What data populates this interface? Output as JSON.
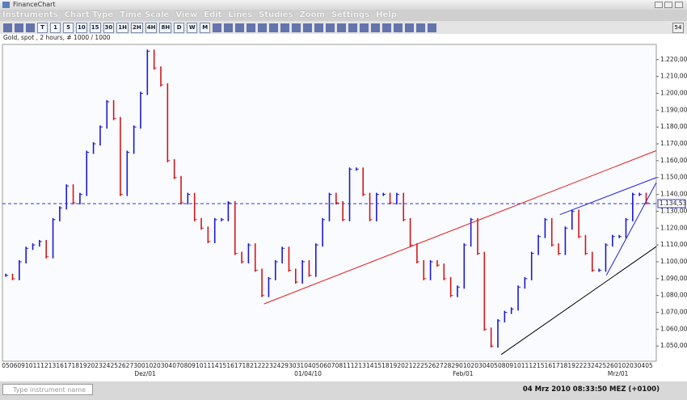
{
  "window_title": "FinanceChart",
  "menu": [
    "Instruments",
    "Chart Type",
    "Time Scale",
    "View",
    "Edit",
    "Lines",
    "Studies",
    "Zoom",
    "Settings",
    "Help"
  ],
  "toolbar_buttons": [
    "T",
    "1",
    "5",
    "10",
    "15",
    "30",
    "1H",
    "2H",
    "4H",
    "8H",
    "D",
    "W",
    "M"
  ],
  "badge": "54",
  "chart_data": {
    "type": "stock",
    "title": "Gold, spot , 2 hours, # 1000 / 1000",
    "up_color": "#1a1ad0",
    "down_color": "#d01818",
    "xlim": [
      -0.5,
      96.5
    ],
    "ylim": [
      1041,
      1229
    ],
    "values": [
      1092,
      1090,
      1100,
      1108,
      1110,
      1112,
      1103,
      1125,
      1132,
      1145,
      1135,
      1140,
      1165,
      1170,
      1180,
      1195,
      1185,
      1140,
      1165,
      1180,
      1200,
      1225,
      1215,
      1205,
      1160,
      1150,
      1135,
      1140,
      1125,
      1120,
      1112,
      1125,
      1125,
      1135,
      1105,
      1100,
      1110,
      1095,
      1080,
      1090,
      1100,
      1108,
      1095,
      1088,
      1100,
      1092,
      1110,
      1125,
      1140,
      1135,
      1125,
      1155,
      1155,
      1140,
      1125,
      1140,
      1140,
      1135,
      1140,
      1125,
      1110,
      1100,
      1090,
      1100,
      1098,
      1090,
      1080,
      1085,
      1110,
      1125,
      1105,
      1060,
      1050,
      1065,
      1070,
      1072,
      1085,
      1090,
      1105,
      1115,
      1125,
      1110,
      1105,
      1120,
      1130,
      1115,
      1105,
      1095,
      1095,
      1110,
      1115,
      1115,
      1125,
      1140,
      1140,
      1135
    ],
    "yticks": [
      {
        "value": 1050,
        "label": "1.050,00"
      },
      {
        "value": 1060,
        "label": "1.060,00"
      },
      {
        "value": 1070,
        "label": "1.070,00"
      },
      {
        "value": 1080,
        "label": "1.080,00"
      },
      {
        "value": 1090,
        "label": "1.090,00"
      },
      {
        "value": 1100,
        "label": "1.100,00"
      },
      {
        "value": 1110,
        "label": "1.110,00"
      },
      {
        "value": 1120,
        "label": "1.120,00"
      },
      {
        "value": 1130,
        "label": "1.130,00"
      },
      {
        "value": 1140,
        "label": "1.140,00"
      },
      {
        "value": 1150,
        "label": "1.150,00"
      },
      {
        "value": 1160,
        "label": "1.160,00"
      },
      {
        "value": 1170,
        "label": "1.170,00"
      },
      {
        "value": 1180,
        "label": "1.180,00"
      },
      {
        "value": 1190,
        "label": "1.190,00"
      },
      {
        "value": 1200,
        "label": "1.200,00"
      },
      {
        "value": 1210,
        "label": "1.210,00"
      },
      {
        "value": 1220,
        "label": "1.220,00"
      }
    ],
    "last_price": {
      "value": 1134.53,
      "label": "1.134,53"
    },
    "trend_lines": [
      {
        "color": "#e02020",
        "x": [
          38.3,
          96.5
        ],
        "y": [
          1075,
          1166
        ]
      },
      {
        "color": "#000000",
        "x": [
          73.5,
          96.5
        ],
        "y": [
          1045,
          1109
        ]
      },
      {
        "color": "#2020e0",
        "x": [
          82.2,
          96.5
        ],
        "y": [
          1128,
          1150
        ]
      },
      {
        "color": "#2020e0",
        "x": [
          89.1,
          96.5
        ],
        "y": [
          1092,
          1147
        ]
      }
    ],
    "x_day_labels": [
      "05",
      "06",
      "09",
      "10",
      "11",
      "12",
      "13",
      "16",
      "17",
      "18",
      "19",
      "20",
      "23",
      "24",
      "25",
      "26",
      "27",
      "30",
      "01",
      "02",
      "03",
      "04",
      "07",
      "08",
      "09",
      "10",
      "11",
      "14",
      "15",
      "16",
      "17",
      "18",
      "21",
      "22",
      "23",
      "24",
      "29",
      "30",
      "31",
      "04",
      "05",
      "06",
      "07",
      "08",
      "11",
      "12",
      "13",
      "14",
      "15",
      "18",
      "19",
      "20",
      "21",
      "22",
      "25",
      "26",
      "27",
      "28",
      "29",
      "01",
      "02",
      "03",
      "04",
      "05",
      "08",
      "09",
      "10",
      "11",
      "12",
      "15",
      "16",
      "17",
      "18",
      "19",
      "22",
      "23",
      "24",
      "25",
      "26",
      "01",
      "02",
      "03",
      "04",
      "05"
    ],
    "x_month_labels": [
      null,
      null,
      null,
      null,
      null,
      null,
      null,
      null,
      null,
      null,
      null,
      null,
      null,
      null,
      null,
      null,
      null,
      null,
      "Dez/01",
      null,
      null,
      null,
      null,
      null,
      null,
      null,
      null,
      null,
      null,
      null,
      null,
      null,
      null,
      null,
      null,
      null,
      null,
      null,
      null,
      "01/04/10",
      null,
      null,
      null,
      null,
      null,
      null,
      null,
      null,
      null,
      null,
      null,
      null,
      null,
      null,
      null,
      null,
      null,
      null,
      null,
      "Feb/01",
      null,
      null,
      null,
      null,
      null,
      null,
      null,
      null,
      null,
      null,
      null,
      null,
      null,
      null,
      null,
      null,
      null,
      null,
      null,
      "Mrz/01",
      null,
      null,
      null,
      null
    ]
  },
  "status": {
    "search_placeholder": "Type instrument name",
    "datetime": "04 Mrz 2010 08:33:50  MEZ (+0100)"
  }
}
